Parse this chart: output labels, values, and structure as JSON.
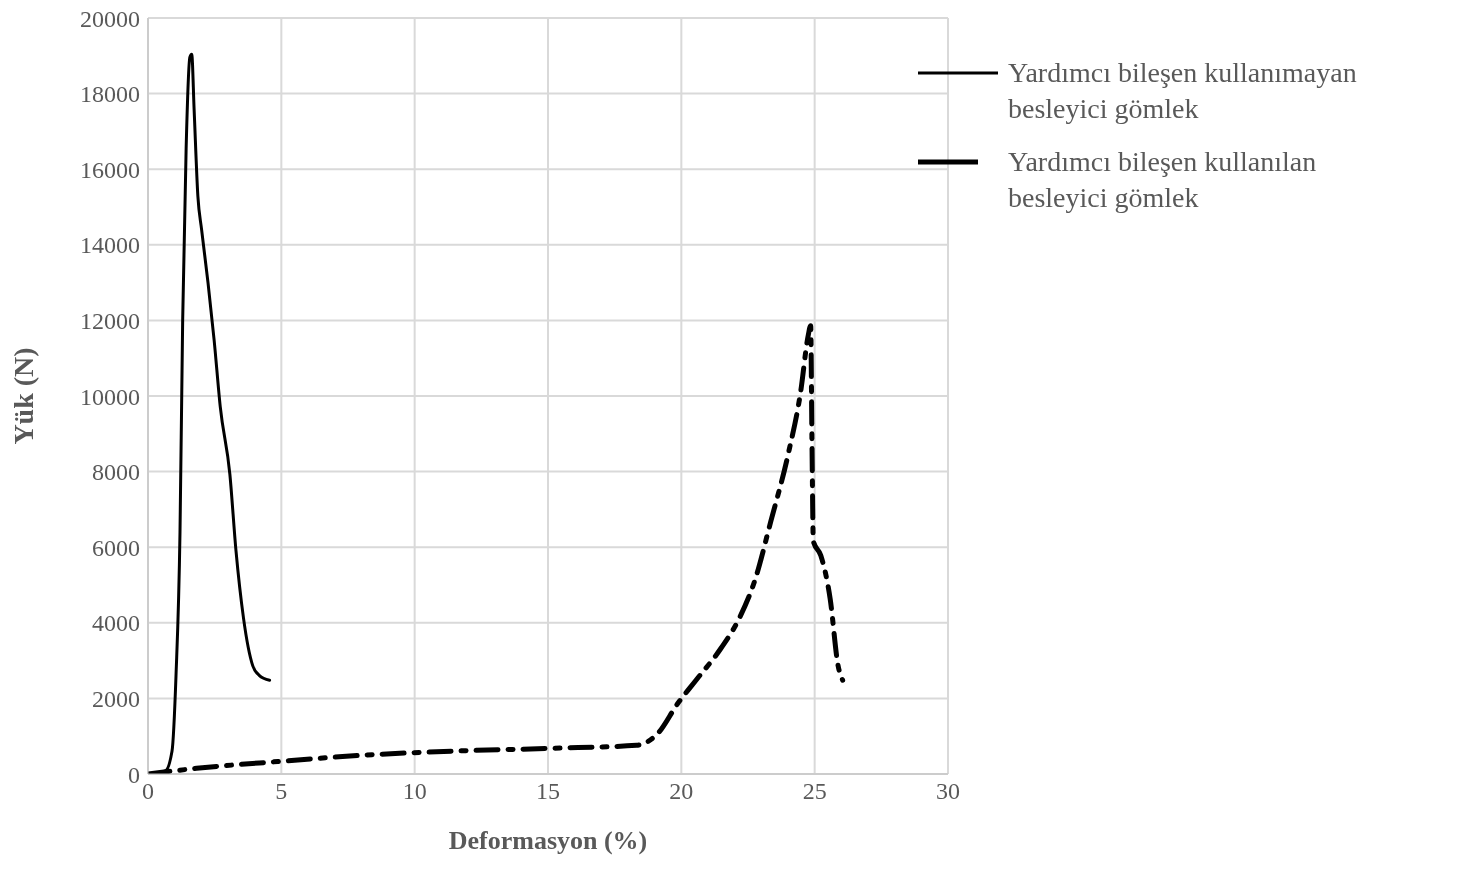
{
  "chart_data": {
    "type": "line",
    "xlabel": "Deformasyon (%)",
    "ylabel": "Yük (N)",
    "xlim": [
      0,
      30
    ],
    "xticks": [
      0,
      5,
      10,
      15,
      20,
      25,
      30
    ],
    "ylim": [
      0,
      20000
    ],
    "yticks": [
      0,
      2000,
      4000,
      6000,
      8000,
      10000,
      12000,
      14000,
      16000,
      18000,
      20000
    ],
    "grid": true,
    "legend": "top right",
    "marker": "none",
    "series": [
      {
        "name": "Yardımcı bileşen kullanımayan besleyici gömlek",
        "color": "#000000",
        "line_style": "solid",
        "x": [
          0,
          0.65,
          0.9,
          1.05,
          1.2,
          1.3,
          1.43,
          1.57,
          1.64,
          1.73,
          1.87,
          2.01,
          2.25,
          2.48,
          2.71,
          3.07,
          3.3,
          3.58,
          3.93,
          4.17,
          4.56
        ],
        "values": [
          0,
          80,
          600,
          2600,
          6400,
          12000,
          16550,
          18960,
          19040,
          17570,
          15290,
          14400,
          13000,
          11480,
          9710,
          7930,
          5900,
          4130,
          2860,
          2610,
          2480
        ]
      },
      {
        "name": "Yardımcı bileşen kullanılan besleyici gömlek",
        "color": "#000000",
        "line_style": "dashed",
        "x": [
          0,
          1.82,
          4.87,
          8.14,
          11.65,
          15.16,
          18.32,
          19.14,
          19.85,
          20.55,
          21.48,
          22.18,
          22.77,
          23.35,
          24.0,
          24.47,
          24.76,
          24.85,
          24.9,
          24.95,
          25.23,
          25.58,
          25.88,
          26.05
        ],
        "values": [
          0,
          150,
          330,
          500,
          610,
          680,
          760,
          1090,
          1850,
          2480,
          3320,
          4130,
          5150,
          6670,
          8440,
          10090,
          11610,
          11860,
          8700,
          6160,
          5780,
          4640,
          2860,
          2480
        ]
      }
    ]
  }
}
